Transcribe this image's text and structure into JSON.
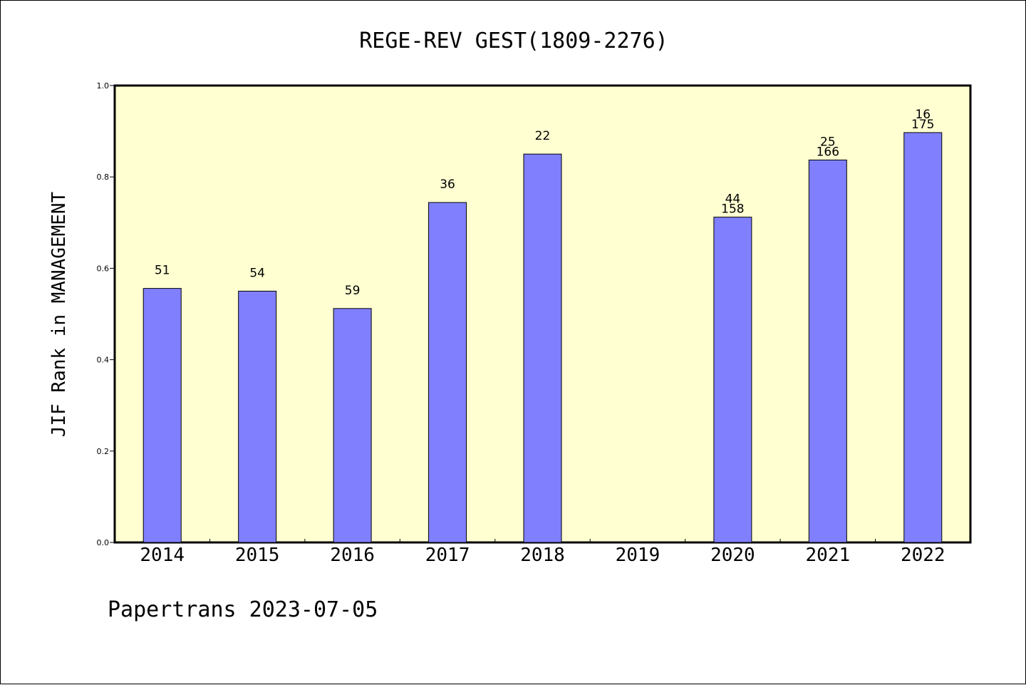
{
  "chart_data": {
    "type": "bar",
    "title": "REGE-REV GEST(1809-2276)",
    "xlabel": "",
    "ylabel": "JIF Rank in MANAGEMENT",
    "ylim": [
      0,
      1.0
    ],
    "yticks": [
      "0.0",
      "0.2",
      "0.4",
      "0.6",
      "0.8",
      "1.0"
    ],
    "categories": [
      "2014",
      "2015",
      "2016",
      "2017",
      "2018",
      "2019",
      "2020",
      "2021",
      "2022"
    ],
    "values": [
      0.556,
      0.55,
      0.512,
      0.744,
      0.85,
      null,
      0.712,
      0.837,
      0.897
    ],
    "bar_labels": [
      [
        "51"
      ],
      [
        "54"
      ],
      [
        "59"
      ],
      [
        "36"
      ],
      [
        "22"
      ],
      [],
      [
        "44",
        "158"
      ],
      [
        "25",
        "166"
      ],
      [
        "16",
        "175"
      ]
    ],
    "grid": false,
    "legend": "none",
    "colors": {
      "plot_background": "#ffffd2",
      "bar_fill": "#8080ff",
      "bar_stroke": "#000000"
    }
  },
  "footer": "Papertrans 2023-07-05"
}
